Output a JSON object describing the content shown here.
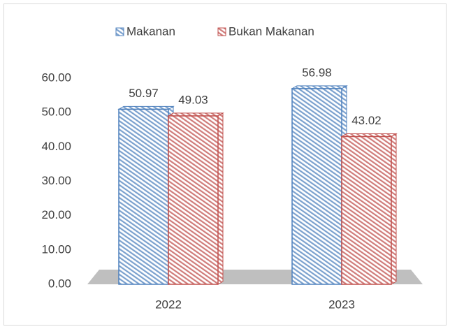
{
  "chart_data": {
    "type": "bar3d",
    "categories": [
      "2022",
      "2023"
    ],
    "series": [
      {
        "name": "Makanan",
        "color": "#4f81bd",
        "values": [
          50.97,
          56.98
        ]
      },
      {
        "name": "Bukan Makanan",
        "color": "#c0504d",
        "values": [
          49.03,
          43.02
        ]
      }
    ],
    "ylim": [
      0,
      60
    ],
    "yticks": [
      {
        "value": 0,
        "label": "0.00"
      },
      {
        "value": 10,
        "label": "10.00"
      },
      {
        "value": 20,
        "label": "20.00"
      },
      {
        "value": 30,
        "label": "30.00"
      },
      {
        "value": 40,
        "label": "40.00"
      },
      {
        "value": 50,
        "label": "50.00"
      },
      {
        "value": 60,
        "label": "60.00"
      }
    ],
    "legend": "top",
    "grid": false
  }
}
